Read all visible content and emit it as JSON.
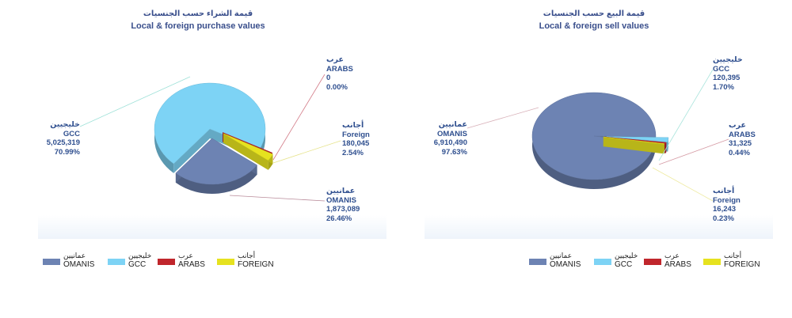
{
  "chart_data": [
    {
      "type": "pie",
      "title_ar": "قيمة الشراء حسب الجنسيات",
      "title": "Local & foreign purchase values",
      "slices": [
        {
          "key": "omanis",
          "name_ar": "عمانيين",
          "name": "OMANIS",
          "value": "1,873,089",
          "percent": "26.46%",
          "pct": 26.46,
          "color": "#6d83b3"
        },
        {
          "key": "gcc",
          "name_ar": "خليجيين",
          "name": "GCC",
          "value": "5,025,319",
          "percent": "70.99%",
          "pct": 70.99,
          "color": "#7dd3f5"
        },
        {
          "key": "arabs",
          "name_ar": "عرب",
          "name": "ARABS",
          "value": "0",
          "percent": "0.00%",
          "pct": 0.0,
          "color": "#c0262c"
        },
        {
          "key": "foreign",
          "name_ar": "أجانب",
          "name": "Foreign",
          "value": "180,045",
          "percent": "2.54%",
          "pct": 2.54,
          "color": "#e6e21f"
        }
      ]
    },
    {
      "type": "pie",
      "title_ar": "قيمة البيع حسب الجنسيات",
      "title": "Local & foreign sell values",
      "slices": [
        {
          "key": "omanis",
          "name_ar": "عمانيين",
          "name": "OMANIS",
          "value": "6,910,490",
          "percent": "97.63%",
          "pct": 97.63,
          "color": "#6d83b3"
        },
        {
          "key": "gcc",
          "name_ar": "خليجيين",
          "name": "GCC",
          "value": "120,395",
          "percent": "1.70%",
          "pct": 1.7,
          "color": "#7dd3f5"
        },
        {
          "key": "arabs",
          "name_ar": "عرب",
          "name": "ARABS",
          "value": "31,325",
          "percent": "0.44%",
          "pct": 0.44,
          "color": "#c0262c"
        },
        {
          "key": "foreign",
          "name_ar": "أجانب",
          "name": "Foreign",
          "value": "16,243",
          "percent": "0.23%",
          "pct": 0.23,
          "color": "#e6e21f"
        }
      ]
    }
  ],
  "legend": [
    {
      "ar": "عمانيين",
      "en": "OMANIS",
      "color": "#6d83b3"
    },
    {
      "ar": "خليجيين",
      "en": "GCC",
      "color": "#7dd3f5"
    },
    {
      "ar": "عرب",
      "en": "ARABS",
      "color": "#c0262c"
    },
    {
      "ar": "أجانب",
      "en": "FOREIGN",
      "color": "#e6e21f"
    }
  ]
}
